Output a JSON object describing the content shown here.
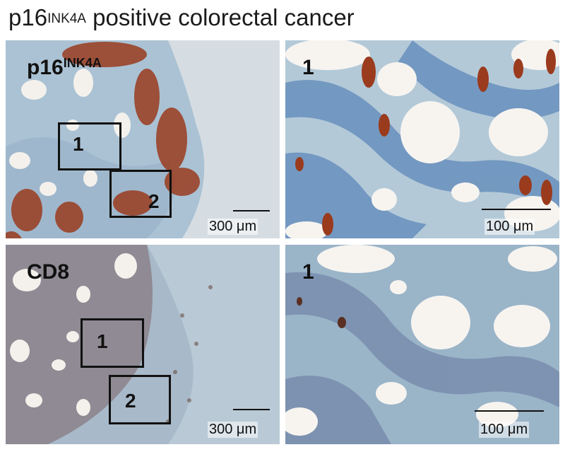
{
  "figure": {
    "title_main": "p16",
    "title_sup": "INK4A",
    "title_rest": " positive colorectal cancer"
  },
  "panels": {
    "top_left": {
      "label_main": "p16",
      "label_sup": "INK4A",
      "roi1": "1",
      "roi2": "2",
      "scale": "300 μm"
    },
    "top_right": {
      "label": "1",
      "scale": "100 μm"
    },
    "bottom_left": {
      "label": "CD8",
      "roi1": "1",
      "roi2": "2",
      "scale": "300 μm"
    },
    "bottom_right": {
      "label": "1",
      "scale": "100 μm"
    }
  },
  "colors": {
    "tissue_blue": "#a9c3d6",
    "nucleus_blue": "#5a83b4",
    "p16_brown": "#9a3b1e",
    "cd8_brown": "#8a5a3c",
    "lumen": "#f7f4f0"
  }
}
